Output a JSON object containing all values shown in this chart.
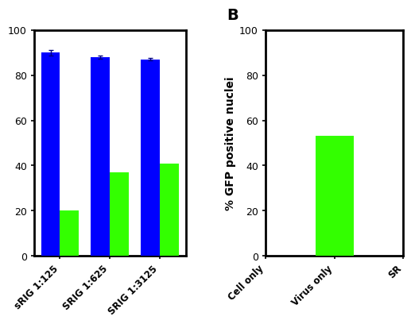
{
  "panel_A": {
    "categories": [
      "sRIG 1:125",
      "SRIG 1:625",
      "SRIG 1:3125"
    ],
    "blue_values": [
      90,
      88,
      87
    ],
    "green_values": [
      20,
      37,
      41
    ],
    "blue_errors": [
      1.2,
      0.8,
      0.6
    ],
    "green_errors": [
      0.8,
      1.0,
      1.2
    ],
    "blue_color": "#0000FF",
    "green_color": "#33FF00",
    "ylim": [
      0,
      100
    ],
    "yticks": [
      0,
      20,
      40,
      60,
      80,
      100
    ]
  },
  "panel_B": {
    "categories": [
      "Cell only",
      "Virus only",
      "SR"
    ],
    "values": [
      0,
      53,
      0
    ],
    "bar_color": "#33FF00",
    "ylim": [
      0,
      100
    ],
    "ylabel": "% GFP positive nuclei",
    "yticks": [
      0,
      20,
      40,
      60,
      80,
      100
    ],
    "panel_label": "B"
  },
  "background_color": "#ffffff",
  "axis_linewidth": 2.0,
  "bar_width": 0.38,
  "tick_fontsize": 9,
  "label_fontsize": 10
}
